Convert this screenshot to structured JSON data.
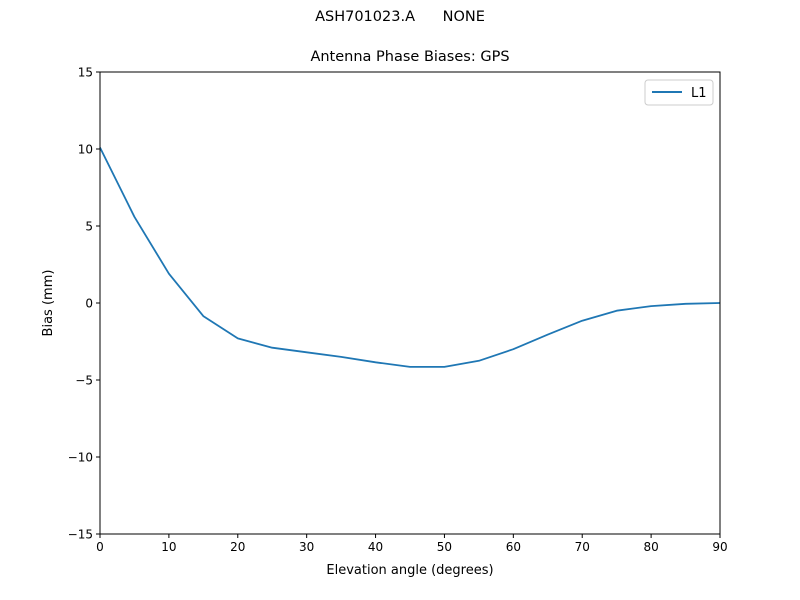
{
  "figure": {
    "suptitle": "ASH701023.A      NONE",
    "title": "Antenna Phase Biases: GPS"
  },
  "chart_data": {
    "type": "line",
    "title": "Antenna Phase Biases: GPS",
    "suptitle": "ASH701023.A      NONE",
    "xlabel": "Elevation angle (degrees)",
    "ylabel": "Bias (mm)",
    "xlim": [
      0,
      90
    ],
    "ylim": [
      -15,
      15
    ],
    "xticks": [
      0,
      10,
      20,
      30,
      40,
      50,
      60,
      70,
      80,
      90
    ],
    "yticks": [
      -15,
      -10,
      -5,
      0,
      5,
      10,
      15
    ],
    "ytick_labels": [
      "−15",
      "−10",
      "−5",
      "0",
      "5",
      "10",
      "15"
    ],
    "grid": false,
    "legend_position": "upper right",
    "x": [
      0,
      5,
      10,
      15,
      20,
      25,
      30,
      35,
      40,
      45,
      50,
      55,
      60,
      65,
      70,
      75,
      80,
      85,
      90
    ],
    "series": [
      {
        "name": "L1",
        "color": "#1f77b4",
        "values": [
          10.1,
          5.6,
          1.9,
          -0.85,
          -2.3,
          -2.9,
          -3.2,
          -3.5,
          -3.85,
          -4.15,
          -4.15,
          -3.75,
          -3.0,
          -2.05,
          -1.15,
          -0.5,
          -0.2,
          -0.05,
          0.0
        ]
      }
    ]
  }
}
